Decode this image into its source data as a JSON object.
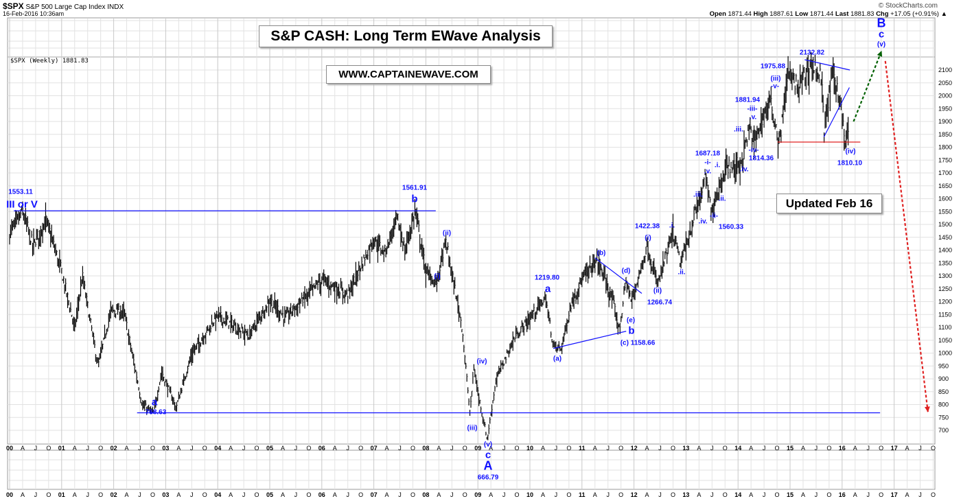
{
  "header": {
    "symbol": "$SPX",
    "name": "S&P 500 Large Cap Index",
    "exchange": "INDX",
    "datetime": "16-Feb-2016 10:36am",
    "copyright": "© StockCharts.com",
    "ohlc": [
      {
        "k": "Open",
        "v": "1871.44"
      },
      {
        "k": "High",
        "v": "1887.61"
      },
      {
        "k": "Low",
        "v": "1871.44"
      },
      {
        "k": "Last",
        "v": "1881.83"
      },
      {
        "k": "Chg",
        "v": "+17.05 (+0.91%) ▲"
      }
    ],
    "legend": "$SPX (Weekly) 1881.83"
  },
  "boxes": {
    "title": "S&P CASH: Long Term EWave Analysis",
    "website": "WWW.CAPTAINEWAVE.COM",
    "updated": "Updated Feb 16"
  },
  "colors": {
    "wave": "#1010ff",
    "support": "#e02020",
    "up_arrow": "#006000",
    "down_arrow": "#e02020",
    "bars": "#000000"
  },
  "annotations": [
    "1553.11",
    "III or V",
    "1561.91",
    "b",
    "(ii)",
    "(i)",
    "(iv)",
    "(iii)",
    "(v)",
    "c",
    "A",
    "666.79",
    "a",
    "768.63",
    "1219.80",
    "a",
    "(a)",
    "(b)",
    "(d)",
    "(e)",
    "b",
    "(c) 1158.66",
    "1422.38",
    "(i)",
    "(ii)",
    "1266.74",
    ".i.",
    ".ii.",
    ".iii.",
    ".iv.",
    "-ii-",
    "1560.33",
    "1687.18",
    "-i-",
    ".v.",
    ".i.",
    ".ii.",
    ".iii.",
    ".iv.",
    "-iv-",
    "1814.36",
    "1881.94",
    "-iii-",
    ".v.",
    "1975.88",
    "(iii)",
    "-v-",
    "2132.82",
    "(iv)",
    "1810.10",
    "B",
    "c",
    "(v)"
  ],
  "chart_data": {
    "type": "ohlc",
    "title": "$SPX (Weekly)",
    "ylim": [
      650,
      2175
    ],
    "yticks": [
      700,
      750,
      800,
      850,
      900,
      950,
      1000,
      1050,
      1100,
      1150,
      1200,
      1250,
      1300,
      1350,
      1400,
      1450,
      1500,
      1550,
      1600,
      1650,
      1700,
      1750,
      1800,
      1850,
      1900,
      1950,
      2000,
      2050,
      2100
    ],
    "xlim": [
      2000,
      2017.75
    ],
    "xticks_years": [
      "00",
      "01",
      "02",
      "03",
      "04",
      "05",
      "06",
      "07",
      "08",
      "09",
      "10",
      "11",
      "12",
      "13",
      "14",
      "15",
      "16",
      "17"
    ],
    "xticks_quarters": [
      "A",
      "J",
      "O"
    ],
    "price_path": [
      [
        2000.0,
        1470
      ],
      [
        2000.25,
        1553
      ],
      [
        2000.45,
        1420
      ],
      [
        2000.7,
        1520
      ],
      [
        2001.0,
        1320
      ],
      [
        2001.25,
        1100
      ],
      [
        2001.4,
        1300
      ],
      [
        2001.7,
        950
      ],
      [
        2001.95,
        1170
      ],
      [
        2002.2,
        1160
      ],
      [
        2002.55,
        800
      ],
      [
        2002.77,
        768
      ],
      [
        2002.92,
        930
      ],
      [
        2003.2,
        790
      ],
      [
        2003.5,
        1000
      ],
      [
        2004.0,
        1150
      ],
      [
        2004.6,
        1070
      ],
      [
        2005.0,
        1210
      ],
      [
        2005.3,
        1140
      ],
      [
        2006.0,
        1290
      ],
      [
        2006.5,
        1230
      ],
      [
        2007.0,
        1450
      ],
      [
        2007.2,
        1390
      ],
      [
        2007.45,
        1530
      ],
      [
        2007.6,
        1400
      ],
      [
        2007.8,
        1562
      ],
      [
        2008.0,
        1320
      ],
      [
        2008.2,
        1270
      ],
      [
        2008.38,
        1440
      ],
      [
        2008.7,
        1100
      ],
      [
        2008.85,
        760
      ],
      [
        2008.92,
        950
      ],
      [
        2009.0,
        850
      ],
      [
        2009.18,
        667
      ],
      [
        2009.35,
        900
      ],
      [
        2009.7,
        1060
      ],
      [
        2010.3,
        1220
      ],
      [
        2010.45,
        1030
      ],
      [
        2010.6,
        1020
      ],
      [
        2010.8,
        1200
      ],
      [
        2011.0,
        1290
      ],
      [
        2011.3,
        1370
      ],
      [
        2011.6,
        1200
      ],
      [
        2011.72,
        1090
      ],
      [
        2011.85,
        1290
      ],
      [
        2011.95,
        1200
      ],
      [
        2012.25,
        1422
      ],
      [
        2012.45,
        1267
      ],
      [
        2012.75,
        1470
      ],
      [
        2012.9,
        1350
      ],
      [
        2013.38,
        1687
      ],
      [
        2013.48,
        1560
      ],
      [
        2013.75,
        1720
      ],
      [
        2014.05,
        1740
      ],
      [
        2014.22,
        1882
      ],
      [
        2014.3,
        1814
      ],
      [
        2014.6,
        1990
      ],
      [
        2014.8,
        1820
      ],
      [
        2014.95,
        2090
      ],
      [
        2015.15,
        2040
      ],
      [
        2015.4,
        2132
      ],
      [
        2015.6,
        2080
      ],
      [
        2015.65,
        1870
      ],
      [
        2015.82,
        2100
      ],
      [
        2015.95,
        2000
      ],
      [
        2016.06,
        1810
      ],
      [
        2016.12,
        1882
      ]
    ],
    "lines": [
      {
        "name": "resistance-1553",
        "from": [
          2000.08,
          1553
        ],
        "to": [
          2008.19,
          1553
        ],
        "color": "#1010ff"
      },
      {
        "name": "support-768",
        "from": [
          2002.45,
          768
        ],
        "to": [
          2016.73,
          768
        ],
        "color": "#1010ff"
      },
      {
        "name": "triangle-lower",
        "from": [
          2010.45,
          1018
        ],
        "to": [
          2011.85,
          1085
        ],
        "color": "#1010ff"
      },
      {
        "name": "triangle-upper",
        "from": [
          2011.25,
          1370
        ],
        "to": [
          2012.15,
          1232
        ],
        "color": "#1010ff"
      },
      {
        "name": "top-upper",
        "from": [
          2015.28,
          2140
        ],
        "to": [
          2016.15,
          2100
        ],
        "color": "#1010ff"
      },
      {
        "name": "top-rising",
        "from": [
          2015.65,
          1840
        ],
        "to": [
          2016.14,
          2032
        ],
        "color": "#1010ff"
      },
      {
        "name": "support-1820",
        "from": [
          2014.76,
          1820
        ],
        "to": [
          2016.35,
          1820
        ],
        "color": "#e02020"
      }
    ],
    "projections": [
      {
        "name": "up-projection",
        "from": [
          2016.22,
          1900
        ],
        "to": [
          2016.76,
          2175
        ],
        "color": "#006000"
      },
      {
        "name": "down-projection",
        "from": [
          2016.83,
          2135
        ],
        "to": [
          2017.65,
          770
        ],
        "color": "#e02020"
      }
    ]
  }
}
